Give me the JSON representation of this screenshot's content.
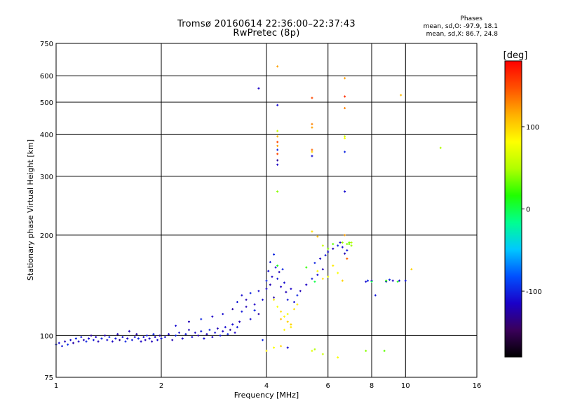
{
  "title": "Tromsø 20160614 22:36:00–22:37:43",
  "subtitle": "RwPretec (8p)",
  "phase_stats": {
    "header": "Phases",
    "line_o": "mean, sd,O: -97.9, 18.1",
    "line_x": "mean, sd,X:  86.7, 24.8"
  },
  "colorbar": {
    "label": "[deg]",
    "ticks": [
      {
        "value": 100,
        "label": "100"
      },
      {
        "value": 0,
        "label": "0"
      },
      {
        "value": -100,
        "label": "-100"
      }
    ],
    "range": [
      -180,
      180
    ],
    "colormap": [
      "#000000",
      "#3a005a",
      "#1a00c8",
      "#0050ff",
      "#00c8ff",
      "#00ff90",
      "#20ff00",
      "#b0ff00",
      "#ffff00",
      "#ffb000",
      "#ff5000",
      "#ff0000"
    ]
  },
  "chart_data": {
    "type": "scatter",
    "xlabel": "Frequency [MHz]",
    "ylabel": "Stationary phase Virtual Height [km]",
    "xscale": "log",
    "yscale": "log",
    "xlim": [
      1,
      16
    ],
    "ylim": [
      75,
      750
    ],
    "xticks": [
      1,
      2,
      4,
      6,
      8,
      10,
      16
    ],
    "xtick_labels": [
      "1",
      "2",
      "4",
      "6",
      "8",
      "10",
      "16"
    ],
    "yticks": [
      75,
      100,
      200,
      300,
      400,
      500,
      600,
      750
    ],
    "ytick_labels": [
      "75",
      "100",
      "200",
      "300",
      "400",
      "500",
      "600",
      "750"
    ],
    "grid": true,
    "color_encodes": "phase [deg]",
    "points": [
      [
        1.0,
        94,
        -100
      ],
      [
        1.02,
        95,
        -110
      ],
      [
        1.04,
        93,
        -105
      ],
      [
        1.06,
        96,
        -120
      ],
      [
        1.08,
        94,
        -95
      ],
      [
        1.1,
        97,
        -110
      ],
      [
        1.12,
        95,
        -125
      ],
      [
        1.14,
        98,
        -100
      ],
      [
        1.16,
        96,
        -115
      ],
      [
        1.18,
        99,
        -105
      ],
      [
        1.2,
        97,
        -120
      ],
      [
        1.22,
        96,
        -100
      ],
      [
        1.24,
        98,
        -110
      ],
      [
        1.26,
        100,
        -130
      ],
      [
        1.28,
        97,
        -105
      ],
      [
        1.3,
        99,
        -115
      ],
      [
        1.32,
        96,
        -120
      ],
      [
        1.35,
        98,
        -100
      ],
      [
        1.38,
        100,
        -125
      ],
      [
        1.4,
        97,
        -110
      ],
      [
        1.42,
        99,
        -100
      ],
      [
        1.45,
        96,
        -115
      ],
      [
        1.48,
        98,
        -105
      ],
      [
        1.5,
        101,
        -120
      ],
      [
        1.52,
        97,
        -130
      ],
      [
        1.55,
        99,
        -110
      ],
      [
        1.58,
        96,
        -100
      ],
      [
        1.6,
        98,
        -115
      ],
      [
        1.62,
        103,
        -120
      ],
      [
        1.65,
        97,
        -105
      ],
      [
        1.68,
        99,
        -110
      ],
      [
        1.7,
        101,
        -125
      ],
      [
        1.72,
        98,
        -100
      ],
      [
        1.75,
        96,
        -115
      ],
      [
        1.78,
        99,
        -110
      ],
      [
        1.8,
        97,
        -120
      ],
      [
        1.82,
        100,
        -105
      ],
      [
        1.85,
        98,
        -110
      ],
      [
        1.88,
        96,
        -120
      ],
      [
        1.9,
        101,
        -100
      ],
      [
        1.92,
        99,
        -115
      ],
      [
        1.95,
        97,
        -110
      ],
      [
        1.98,
        100,
        -125
      ],
      [
        2.0,
        98,
        -105
      ],
      [
        2.05,
        99,
        -110
      ],
      [
        2.1,
        101,
        -115
      ],
      [
        2.15,
        97,
        -120
      ],
      [
        2.2,
        100,
        -100
      ],
      [
        2.25,
        102,
        -110
      ],
      [
        2.3,
        98,
        -115
      ],
      [
        2.35,
        101,
        -105
      ],
      [
        2.4,
        104,
        -120
      ],
      [
        2.45,
        99,
        -110
      ],
      [
        2.5,
        102,
        -115
      ],
      [
        2.55,
        100,
        -125
      ],
      [
        2.6,
        103,
        -105
      ],
      [
        2.65,
        98,
        -110
      ],
      [
        2.7,
        101,
        -120
      ],
      [
        2.75,
        104,
        -100
      ],
      [
        2.8,
        99,
        -115
      ],
      [
        2.85,
        102,
        -110
      ],
      [
        2.9,
        105,
        -120
      ],
      [
        2.95,
        100,
        -105
      ],
      [
        3.0,
        103,
        -115
      ],
      [
        3.05,
        106,
        -110
      ],
      [
        3.1,
        101,
        -100
      ],
      [
        3.15,
        104,
        -125
      ],
      [
        3.2,
        108,
        -110
      ],
      [
        3.25,
        102,
        -115
      ],
      [
        3.3,
        106,
        -105
      ],
      [
        3.35,
        110,
        -120
      ],
      [
        2.2,
        107,
        -110
      ],
      [
        2.4,
        110,
        -120
      ],
      [
        2.6,
        112,
        -100
      ],
      [
        2.8,
        114,
        -115
      ],
      [
        3.0,
        116,
        -110
      ],
      [
        3.2,
        120,
        -125
      ],
      [
        3.3,
        126,
        -105
      ],
      [
        3.4,
        132,
        -110
      ],
      [
        3.5,
        128,
        -120
      ],
      [
        3.6,
        134,
        -100
      ],
      [
        3.7,
        124,
        -115
      ],
      [
        3.8,
        136,
        -110
      ],
      [
        3.4,
        118,
        -105
      ],
      [
        3.5,
        122,
        -120
      ],
      [
        3.6,
        112,
        -110
      ],
      [
        3.7,
        119,
        -100
      ],
      [
        3.8,
        116,
        -125
      ],
      [
        3.9,
        128,
        -110
      ],
      [
        4.0,
        146,
        -100
      ],
      [
        4.0,
        138,
        -115
      ],
      [
        4.05,
        156,
        -110
      ],
      [
        4.1,
        142,
        -120
      ],
      [
        4.1,
        166,
        -105
      ],
      [
        4.15,
        150,
        -115
      ],
      [
        4.2,
        175,
        -100
      ],
      [
        4.2,
        130,
        -125
      ],
      [
        4.25,
        160,
        -110
      ],
      [
        4.3,
        148,
        -105
      ],
      [
        4.35,
        155,
        -120
      ],
      [
        4.4,
        140,
        -115
      ],
      [
        4.45,
        158,
        -100
      ],
      [
        4.5,
        144,
        -110
      ],
      [
        4.55,
        135,
        -120
      ],
      [
        4.6,
        128,
        -105
      ],
      [
        4.7,
        138,
        -115
      ],
      [
        4.8,
        126,
        -110
      ],
      [
        4.9,
        132,
        -100
      ],
      [
        5.0,
        136,
        -120
      ],
      [
        5.2,
        142,
        -115
      ],
      [
        5.4,
        148,
        -105
      ],
      [
        5.6,
        152,
        -110
      ],
      [
        5.8,
        158,
        -120
      ],
      [
        5.5,
        165,
        -100
      ],
      [
        5.7,
        170,
        -115
      ],
      [
        5.9,
        174,
        -105
      ],
      [
        6.0,
        178,
        -110
      ],
      [
        6.2,
        182,
        -120
      ],
      [
        6.4,
        186,
        -100
      ],
      [
        6.5,
        190,
        -115
      ],
      [
        6.6,
        184,
        -110
      ],
      [
        6.7,
        176,
        -120
      ],
      [
        6.8,
        180,
        -105
      ],
      [
        4.2,
        128,
        90
      ],
      [
        4.3,
        122,
        80
      ],
      [
        4.4,
        118,
        95
      ],
      [
        4.5,
        114,
        85
      ],
      [
        4.6,
        110,
        100
      ],
      [
        4.7,
        106,
        90
      ],
      [
        4.4,
        112,
        110
      ],
      [
        4.6,
        116,
        75
      ],
      [
        4.8,
        120,
        95
      ],
      [
        4.5,
        104,
        85
      ],
      [
        4.7,
        108,
        100
      ],
      [
        4.9,
        124,
        90
      ],
      [
        5.6,
        156,
        85
      ],
      [
        5.8,
        148,
        95
      ],
      [
        6.0,
        150,
        75
      ],
      [
        6.2,
        162,
        90
      ],
      [
        6.4,
        154,
        80
      ],
      [
        6.6,
        146,
        100
      ],
      [
        5.8,
        186,
        60
      ],
      [
        6.0,
        182,
        40
      ],
      [
        6.2,
        188,
        30
      ],
      [
        6.6,
        190,
        45
      ],
      [
        6.9,
        188,
        35
      ],
      [
        7.0,
        190,
        50
      ],
      [
        5.4,
        205,
        95
      ],
      [
        5.6,
        198,
        110
      ],
      [
        6.8,
        170,
        140
      ],
      [
        6.7,
        200,
        120
      ],
      [
        4.3,
        162,
        10
      ],
      [
        5.2,
        160,
        20
      ],
      [
        5.5,
        145,
        0
      ],
      [
        7.7,
        145,
        -110
      ],
      [
        7.8,
        146,
        -100
      ],
      [
        8.0,
        146,
        -120
      ],
      [
        8.2,
        132,
        -105
      ],
      [
        8.8,
        145,
        -110
      ],
      [
        9.0,
        147,
        -100
      ],
      [
        9.2,
        146,
        -115
      ],
      [
        9.6,
        146,
        -110
      ],
      [
        10.0,
        146,
        -105
      ],
      [
        10.4,
        158,
        100
      ],
      [
        8.0,
        145,
        0
      ],
      [
        8.8,
        146,
        20
      ],
      [
        9.5,
        145,
        10
      ],
      [
        4.0,
        90,
        90
      ],
      [
        4.2,
        92,
        80
      ],
      [
        4.4,
        93,
        100
      ],
      [
        5.4,
        90,
        70
      ],
      [
        5.8,
        88,
        60
      ],
      [
        6.4,
        86,
        80
      ],
      [
        7.7,
        90,
        40
      ],
      [
        8.7,
        90,
        30
      ],
      [
        4.6,
        92,
        -110
      ],
      [
        3.9,
        97,
        -100
      ],
      [
        5.5,
        91,
        50
      ],
      [
        4.3,
        640,
        120
      ],
      [
        4.3,
        490,
        -110
      ],
      [
        3.8,
        550,
        -115
      ],
      [
        5.4,
        515,
        150
      ],
      [
        6.7,
        520,
        160
      ],
      [
        6.7,
        590,
        120
      ],
      [
        6.7,
        480,
        130
      ],
      [
        9.7,
        525,
        110
      ],
      [
        5.4,
        430,
        130
      ],
      [
        5.4,
        420,
        120
      ],
      [
        4.3,
        410,
        60
      ],
      [
        4.3,
        395,
        110
      ],
      [
        4.3,
        380,
        150
      ],
      [
        4.3,
        370,
        120
      ],
      [
        4.3,
        360,
        -100
      ],
      [
        4.3,
        350,
        150
      ],
      [
        4.3,
        335,
        -130
      ],
      [
        4.3,
        325,
        -115
      ],
      [
        4.3,
        270,
        40
      ],
      [
        5.4,
        360,
        140
      ],
      [
        5.4,
        355,
        100
      ],
      [
        5.4,
        345,
        -110
      ],
      [
        6.7,
        395,
        60
      ],
      [
        6.7,
        390,
        80
      ],
      [
        6.7,
        355,
        -100
      ],
      [
        6.7,
        270,
        -110
      ],
      [
        12.6,
        365,
        50
      ],
      [
        6.9,
        190,
        35
      ],
      [
        6.8,
        188,
        40
      ],
      [
        7.0,
        186,
        45
      ]
    ]
  }
}
